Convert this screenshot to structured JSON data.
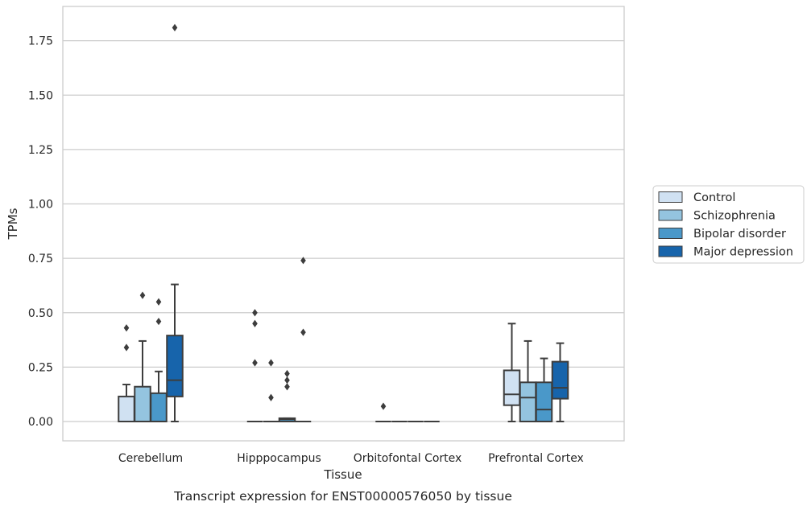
{
  "chart_data": {
    "type": "box",
    "caption": "Transcript expression for ENST00000576050 by tissue",
    "xlabel": "Tissue",
    "ylabel": "TPMs",
    "ylim": [
      -0.085,
      1.9
    ],
    "yticks": [
      "0.00",
      "0.25",
      "0.50",
      "0.75",
      "1.00",
      "1.25",
      "1.50",
      "1.75"
    ],
    "grid": "horizontal",
    "legend_position": "right",
    "categories": [
      "Cerebellum",
      "Hipppocampus",
      "Orbitofontal Cortex",
      "Prefrontal Cortex"
    ],
    "series": [
      {
        "name": "Control",
        "color": "#d0e1f2",
        "boxes": [
          {
            "q1": 0.0,
            "median": 0.0,
            "q3": 0.115,
            "whisker_low": 0.0,
            "whisker_high": 0.17,
            "outliers": [
              0.34,
              0.43
            ]
          },
          {
            "q1": 0.0,
            "median": 0.0,
            "q3": 0.0,
            "whisker_low": 0.0,
            "whisker_high": 0.0,
            "outliers": [
              0.27,
              0.45,
              0.5
            ]
          },
          {
            "q1": 0.0,
            "median": 0.0,
            "q3": 0.0,
            "whisker_low": 0.0,
            "whisker_high": 0.0,
            "outliers": [
              0.07
            ]
          },
          {
            "q1": 0.075,
            "median": 0.125,
            "q3": 0.235,
            "whisker_low": 0.0,
            "whisker_high": 0.45,
            "outliers": []
          }
        ]
      },
      {
        "name": "Schizophrenia",
        "color": "#94c4df",
        "boxes": [
          {
            "q1": 0.0,
            "median": 0.0,
            "q3": 0.16,
            "whisker_low": 0.0,
            "whisker_high": 0.37,
            "outliers": [
              0.58
            ]
          },
          {
            "q1": 0.0,
            "median": 0.0,
            "q3": 0.0,
            "whisker_low": 0.0,
            "whisker_high": 0.0,
            "outliers": [
              0.11,
              0.27
            ]
          },
          {
            "q1": 0.0,
            "median": 0.0,
            "q3": 0.0,
            "whisker_low": 0.0,
            "whisker_high": 0.0,
            "outliers": []
          },
          {
            "q1": 0.0,
            "median": 0.11,
            "q3": 0.18,
            "whisker_low": 0.0,
            "whisker_high": 0.37,
            "outliers": []
          }
        ]
      },
      {
        "name": "Bipolar disorder",
        "color": "#4a98c9",
        "boxes": [
          {
            "q1": 0.0,
            "median": 0.0,
            "q3": 0.13,
            "whisker_low": 0.0,
            "whisker_high": 0.23,
            "outliers": [
              0.46,
              0.55
            ]
          },
          {
            "q1": 0.0,
            "median": 0.01,
            "q3": 0.015,
            "whisker_low": 0.0,
            "whisker_high": 0.015,
            "outliers": [
              0.16,
              0.19,
              0.22
            ]
          },
          {
            "q1": 0.0,
            "median": 0.0,
            "q3": 0.0,
            "whisker_low": 0.0,
            "whisker_high": 0.0,
            "outliers": []
          },
          {
            "q1": 0.0,
            "median": 0.055,
            "q3": 0.18,
            "whisker_low": 0.0,
            "whisker_high": 0.29,
            "outliers": []
          }
        ]
      },
      {
        "name": "Major depression",
        "color": "#1764ab",
        "boxes": [
          {
            "q1": 0.115,
            "median": 0.19,
            "q3": 0.395,
            "whisker_low": 0.0,
            "whisker_high": 0.63,
            "outliers": [
              1.81
            ]
          },
          {
            "q1": 0.0,
            "median": 0.0,
            "q3": 0.0,
            "whisker_low": 0.0,
            "whisker_high": 0.0,
            "outliers": [
              0.41,
              0.74
            ]
          },
          {
            "q1": 0.0,
            "median": 0.0,
            "q3": 0.0,
            "whisker_low": 0.0,
            "whisker_high": 0.0,
            "outliers": []
          },
          {
            "q1": 0.105,
            "median": 0.155,
            "q3": 0.275,
            "whisker_low": 0.0,
            "whisker_high": 0.36,
            "outliers": []
          }
        ]
      }
    ]
  }
}
